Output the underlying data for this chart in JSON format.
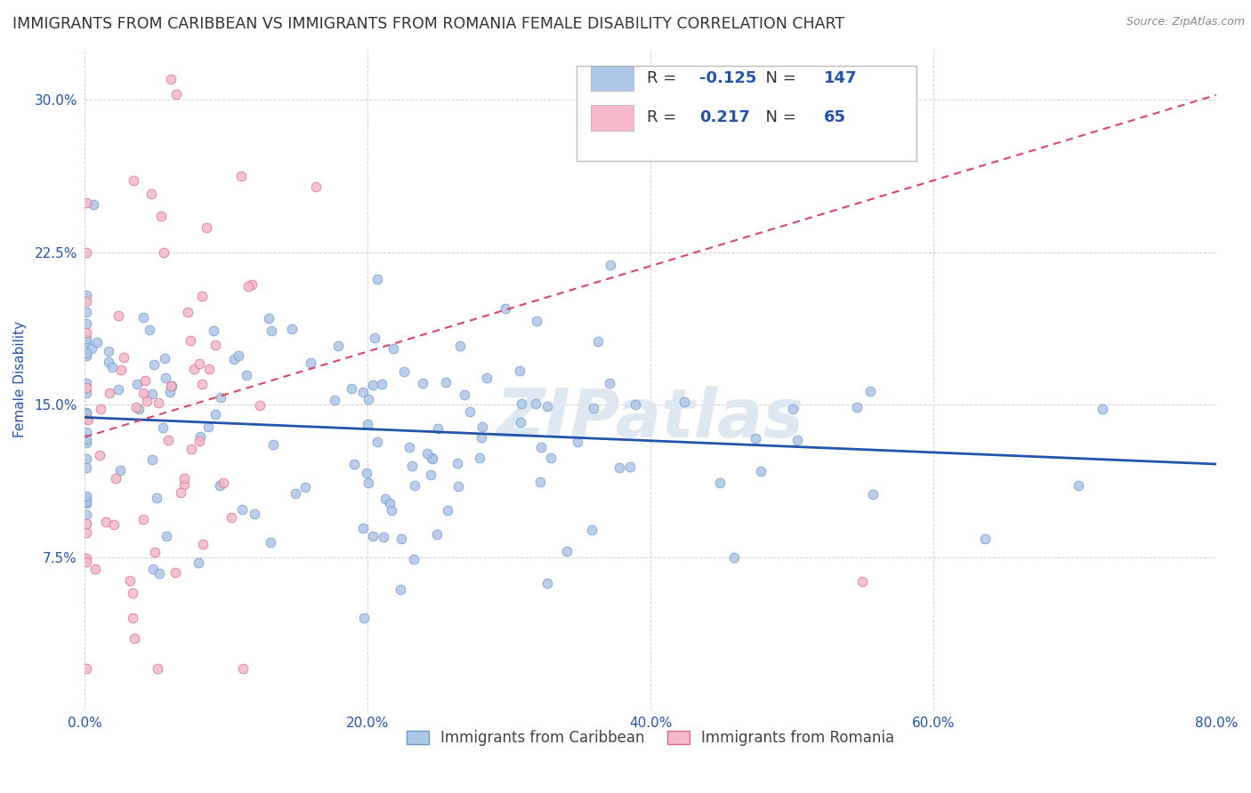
{
  "title": "IMMIGRANTS FROM CARIBBEAN VS IMMIGRANTS FROM ROMANIA FEMALE DISABILITY CORRELATION CHART",
  "source": "Source: ZipAtlas.com",
  "ylabel": "Female Disability",
  "xlim": [
    0.0,
    0.8
  ],
  "ylim": [
    0.0,
    0.325
  ],
  "yticks": [
    0.075,
    0.15,
    0.225,
    0.3
  ],
  "ytick_labels": [
    "7.5%",
    "15.0%",
    "22.5%",
    "30.0%"
  ],
  "xticks": [
    0.0,
    0.2,
    0.4,
    0.6,
    0.8
  ],
  "xtick_labels": [
    "0.0%",
    "20.0%",
    "40.0%",
    "60.0%",
    "80.0%"
  ],
  "series": [
    {
      "name": "Immigrants from Caribbean",
      "color": "#aec6e8",
      "edge_color": "#6699cc",
      "R": -0.125,
      "N": 147,
      "trend_color": "#2255aa",
      "trend_style": "solid"
    },
    {
      "name": "Immigrants from Romania",
      "color": "#f4b8c8",
      "edge_color": "#dd6688",
      "R": 0.217,
      "N": 65,
      "trend_color": "#dd4466",
      "trend_style": "dashed"
    }
  ],
  "legend_R_label_color": "#333333",
  "legend_RN_value_color": "#2255aa",
  "watermark": "ZIPatlas",
  "watermark_color": "#dde8f0",
  "title_color": "#333333",
  "title_fontsize": 12.5,
  "axis_label_color": "#2255aa",
  "tick_color": "#2255aa",
  "grid_color": "#cccccc",
  "background_color": "#ffffff",
  "seed": 99
}
